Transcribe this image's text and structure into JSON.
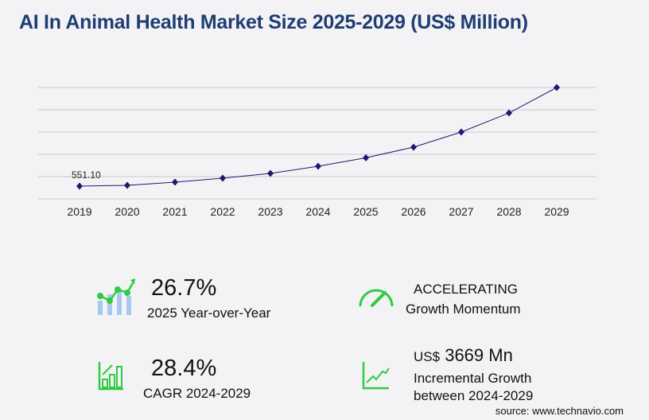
{
  "title": "AI In Animal Health Market Size 2025-2029 (US$ Million)",
  "chart_data": {
    "type": "line",
    "categories": [
      "2019",
      "2020",
      "2021",
      "2022",
      "2023",
      "2024",
      "2025",
      "2026",
      "2027",
      "2028",
      "2029"
    ],
    "values": [
      551.1,
      588,
      736,
      922,
      1144,
      1477,
      1871,
      2367,
      3071,
      3960,
      5146
    ],
    "data_labels": [
      "551.10",
      "",
      "",
      "",
      "",
      "",
      "",
      "",
      "",
      "",
      ""
    ],
    "ylim": [
      -42,
      5146
    ],
    "grid": true,
    "color": "#1a1a6e"
  },
  "kpis": [
    {
      "value": "26.7%",
      "label": "2025 Year-over-Year",
      "icon": "bar-line-chart-icon"
    },
    {
      "value": "ACCELERATING",
      "label": "Growth Momentum",
      "icon": "speedometer-icon"
    },
    {
      "value": "28.4%",
      "label": "CAGR 2024-2029",
      "icon": "bar-chart-up-icon"
    },
    {
      "prefix": "US$",
      "value": "3669 Mn",
      "label": "Incremental Growth",
      "label2": "between 2024-2029",
      "icon": "trend-up-icon"
    }
  ],
  "source": "source: www.technavio.com",
  "accent": "#2ecc40"
}
